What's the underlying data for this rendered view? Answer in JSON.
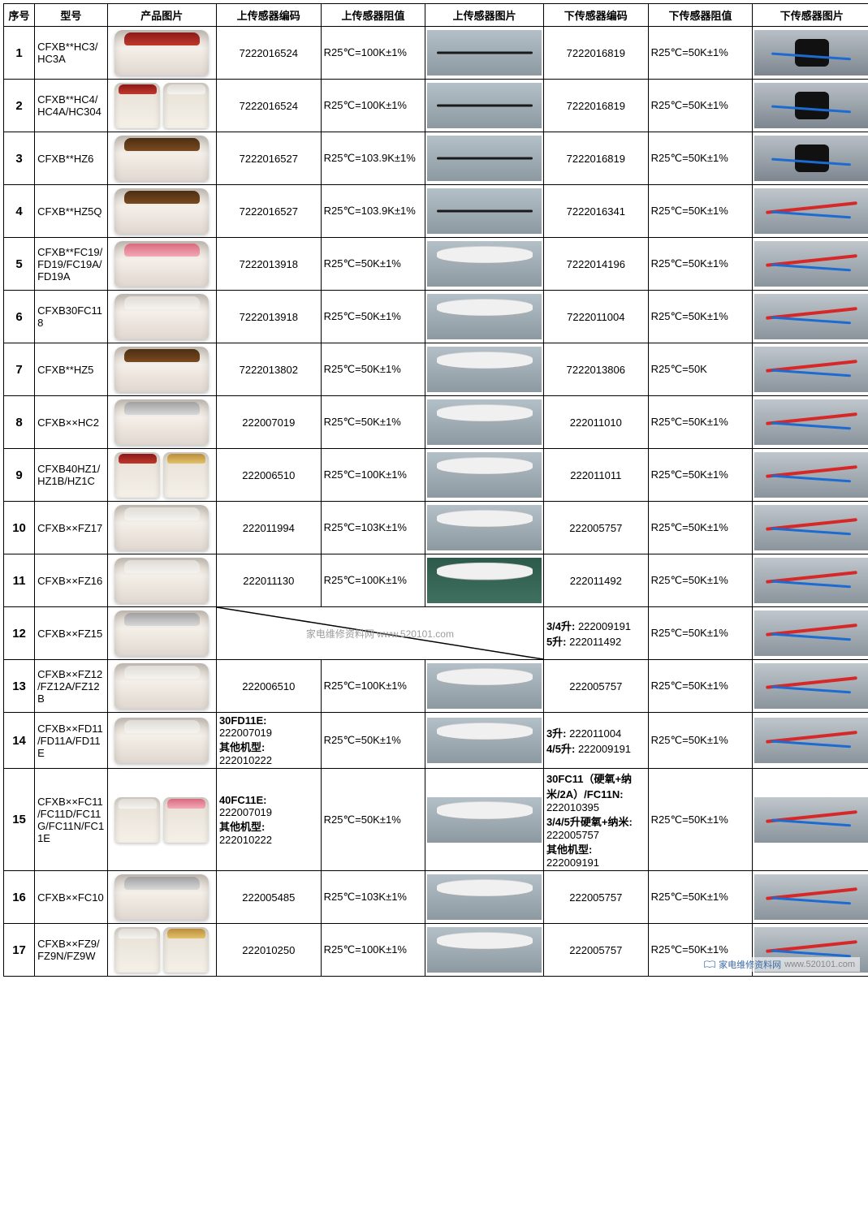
{
  "columns": [
    "序号",
    "型号",
    "产品图片",
    "上传感器编码",
    "上传感器阻值",
    "上传感器图片",
    "下传感器编码",
    "下传感器阻值",
    "下传感器图片"
  ],
  "watermark": "家电维修资料网 www.520101.com",
  "footer": {
    "label": "家电维修资料网",
    "url": "www.520101.com"
  },
  "row12_lower_code": "3/4升: 222009191\n5升: 222011492",
  "row14_upper_code": "30FD11E: 222007019\n其他机型: 222010222",
  "row14_lower_code": "3升: 222011004\n4/5升: 222009191",
  "row15_upper_code": "40FC11E: 222007019\n其他机型: 222010222",
  "row15_lower_code": "30FC11（硬氧+纳米/2A）/FC11N: 222010395\n3/4/5升硬氧+纳米: 222005757\n其他机型: 222009191",
  "rows": [
    {
      "idx": "1",
      "model": "CFXB**HC3/HC3A",
      "upper_code": "7222016524",
      "upper_res": "R25℃=100K±1%",
      "lower_code": "7222016819",
      "lower_res": "R25℃=50K±1%",
      "cooker": "red",
      "stop": "probe",
      "sbot": "bracket"
    },
    {
      "idx": "2",
      "model": "CFXB**HC4/HC4A/HC304",
      "upper_code": "7222016524",
      "upper_res": "R25℃=100K±1%",
      "lower_code": "7222016819",
      "lower_res": "R25℃=50K±1%",
      "cooker": "dual-red-white",
      "stop": "probe",
      "sbot": "bracket"
    },
    {
      "idx": "3",
      "model": "CFXB**HZ6",
      "upper_code": "7222016527",
      "upper_res": "R25℃=103.9K±1%",
      "lower_code": "7222016819",
      "lower_res": "R25℃=50K±1%",
      "cooker": "brown",
      "stop": "probe",
      "sbot": "bracket"
    },
    {
      "idx": "4",
      "model": "CFXB**HZ5Q",
      "upper_code": "7222016527",
      "upper_res": "R25℃=103.9K±1%",
      "lower_code": "7222016341",
      "lower_res": "R25℃=50K±1%",
      "cooker": "brown",
      "stop": "probe",
      "sbot": "wires"
    },
    {
      "idx": "5",
      "model": "CFXB**FC19/FD19/FC19A/FD19A",
      "upper_code": "7222013918",
      "upper_res": "R25℃=50K±1%",
      "lower_code": "7222014196",
      "lower_res": "R25℃=50K±1%",
      "cooker": "pink",
      "stop": "cable",
      "sbot": "wires"
    },
    {
      "idx": "6",
      "model": "CFXB30FC118",
      "upper_code": "7222013918",
      "upper_res": "R25℃=50K±1%",
      "lower_code": "7222011004",
      "lower_res": "R25℃=50K±1%",
      "cooker": "white",
      "stop": "cable",
      "sbot": "wires"
    },
    {
      "idx": "7",
      "model": "CFXB**HZ5",
      "upper_code": "7222013802",
      "upper_res": "R25℃=50K±1%",
      "lower_code": "7222013806",
      "lower_res": "R25℃=50K",
      "cooker": "brown",
      "stop": "cable",
      "sbot": "wires"
    },
    {
      "idx": "8",
      "model": "CFXB××HC2",
      "upper_code": "222007019",
      "upper_res": "R25℃=50K±1%",
      "lower_code": "222011010",
      "lower_res": "R25℃=50K±1%",
      "cooker": "silver",
      "stop": "cable",
      "sbot": "wires"
    },
    {
      "idx": "9",
      "model": "CFXB40HZ1/HZ1B/HZ1C",
      "upper_code": "222006510",
      "upper_res": "R25℃=100K±1%",
      "lower_code": "222011011",
      "lower_res": "R25℃=50K±1%",
      "cooker": "dual-red-gold",
      "stop": "cable",
      "sbot": "wires"
    },
    {
      "idx": "10",
      "model": "CFXB××FZ17",
      "upper_code": "222011994",
      "upper_res": "R25℃=103K±1%",
      "lower_code": "222005757",
      "lower_res": "R25℃=50K±1%",
      "cooker": "white",
      "stop": "cable",
      "sbot": "wires"
    },
    {
      "idx": "11",
      "model": "CFXB××FZ16",
      "upper_code": "222011130",
      "upper_res": "R25℃=100K±1%",
      "lower_code": "222011492",
      "lower_res": "R25℃=50K±1%",
      "cooker": "white",
      "stop": "green",
      "sbot": "wires"
    },
    {
      "idx": "12",
      "model": "CFXB××FZ15",
      "upper_code": "",
      "upper_res": "",
      "lower_code": "",
      "lower_res": "R25℃=50K±1%",
      "cooker": "silver",
      "stop": "",
      "sbot": "wires"
    },
    {
      "idx": "13",
      "model": "CFXB××FZ12/FZ12A/FZ12B",
      "upper_code": "222006510",
      "upper_res": "R25℃=100K±1%",
      "lower_code": "222005757",
      "lower_res": "R25℃=50K±1%",
      "cooker": "white",
      "stop": "cable",
      "sbot": "wires"
    },
    {
      "idx": "14",
      "model": "CFXB××FD11/FD11A/FD11E",
      "upper_code": "",
      "upper_res": "R25℃=50K±1%",
      "lower_code": "",
      "lower_res": "R25℃=50K±1%",
      "cooker": "white",
      "stop": "cable",
      "sbot": "wires"
    },
    {
      "idx": "15",
      "model": "CFXB××FC11/FC11D/FC11G/FC11N/FC11E",
      "upper_code": "",
      "upper_res": "R25℃=50K±1%",
      "lower_code": "",
      "lower_res": "R25℃=50K±1%",
      "cooker": "dual-white-pink",
      "stop": "cable",
      "sbot": "wires"
    },
    {
      "idx": "16",
      "model": "CFXB××FC10",
      "upper_code": "222005485",
      "upper_res": "R25℃=103K±1%",
      "lower_code": "222005757",
      "lower_res": "R25℃=50K±1%",
      "cooker": "silver",
      "stop": "cable",
      "sbot": "wires"
    },
    {
      "idx": "17",
      "model": "CFXB××FZ9/FZ9N/FZ9W",
      "upper_code": "222010250",
      "upper_res": "R25℃=100K±1%",
      "lower_code": "222005757",
      "lower_res": "R25℃=50K±1%",
      "cooker": "dual-white-gold",
      "stop": "cable",
      "sbot": "wires"
    }
  ]
}
